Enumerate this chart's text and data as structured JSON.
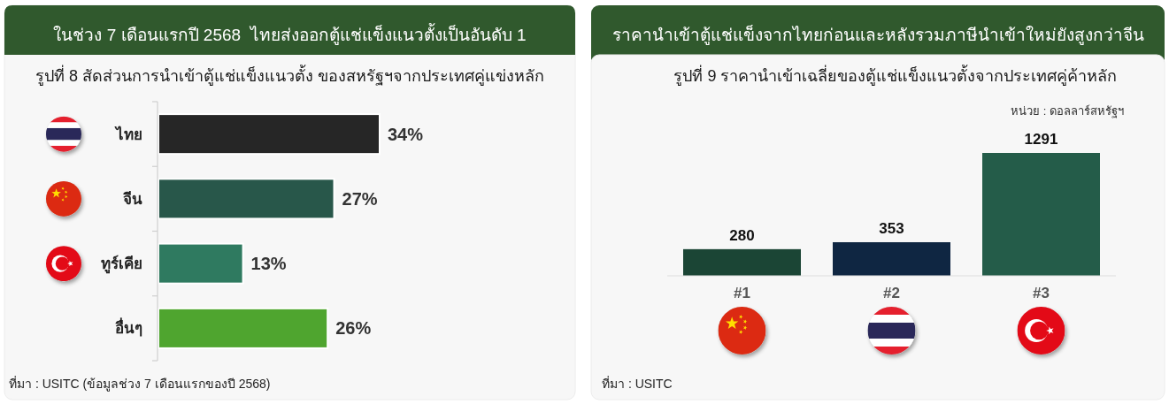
{
  "chart_data": [
    {
      "type": "bar",
      "orientation": "horizontal",
      "title": "ในช่วง 7 เดือนแรกปี 2568  ไทยส่งออกตู้แช่แข็งแนวตั้งเป็นอันดับ 1",
      "subtitle": "รูปที่ 8 สัดส่วนการนำเข้าตู้แช่แข็งแนวตั้ง ของสหรัฐฯจากประเทศคู่แข่งหลัก",
      "categories": [
        "ไทย",
        "จีน",
        "ทูร์เคีย",
        "อื่นๆ"
      ],
      "values": [
        34,
        27,
        13,
        26
      ],
      "colors": [
        "#262626",
        "#28574a",
        "#2f7a60",
        "#4fa52f"
      ],
      "value_labels": [
        "34%",
        "27%",
        "13%",
        "26%"
      ],
      "tick_labels": "y",
      "annotations": [
        "ที่มา : USITC (ข้อมูลช่วง 7 เดือนแรกของปี 2568)"
      ]
    },
    {
      "type": "bar",
      "title": "ราคานำเข้าตู้แช่แข็งจากไทยก่อนและหลังรวมภาษีนำเข้าใหม่ยังสูงกว่าจีน",
      "subtitle": "รูปที่ 9 ราคานำเข้าเฉลี่ยของตู้แช่แข็งแนวตั้งจากประเทศคู่ค้าหลัก",
      "categories": [
        "#1",
        "#2",
        "#3"
      ],
      "values": [
        280,
        353,
        1291
      ],
      "colors": [
        "#1b4535",
        "#0f2642",
        "#245c49"
      ],
      "data_labels": true,
      "tick_labels": "x",
      "annotations": [
        "หน่วย : ดอลลาร์สหรัฐฯ",
        "ที่มา : USITC"
      ]
    }
  ]
}
